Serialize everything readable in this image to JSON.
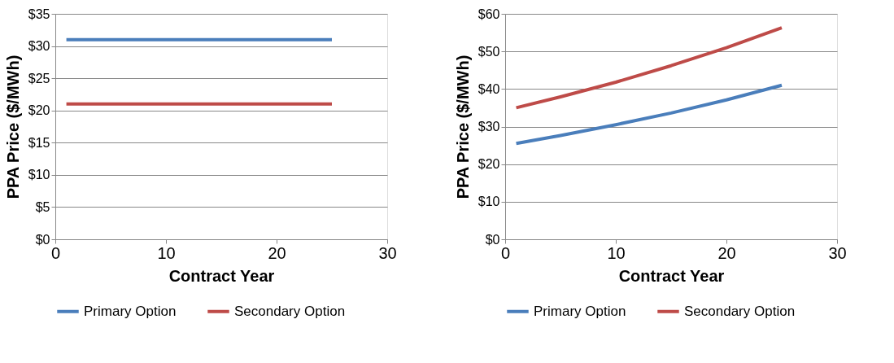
{
  "chart_data": [
    {
      "type": "line",
      "xlabel": "Contract Year",
      "ylabel": "PPA Price ($/MWh)",
      "xlim": [
        0,
        30
      ],
      "xticks": [
        0,
        10,
        20,
        30
      ],
      "ylim": [
        0,
        35
      ],
      "yticks": [
        {
          "value": 0,
          "label": "$0"
        },
        {
          "value": 5,
          "label": "$5"
        },
        {
          "value": 10,
          "label": "$10"
        },
        {
          "value": 15,
          "label": "$15"
        },
        {
          "value": 20,
          "label": "$20"
        },
        {
          "value": 25,
          "label": "$25"
        },
        {
          "value": 30,
          "label": "$30"
        },
        {
          "value": 35,
          "label": "$35"
        }
      ],
      "grid": "y",
      "legend": "bottom",
      "marker": "none",
      "line_style": "solid",
      "series": [
        {
          "name": "Primary Option",
          "color": "#4a7ebb",
          "x": [
            1,
            25
          ],
          "values": [
            31,
            31
          ]
        },
        {
          "name": "Secondary Option",
          "color": "#be4b48",
          "x": [
            1,
            25
          ],
          "values": [
            21,
            21
          ]
        }
      ]
    },
    {
      "type": "line",
      "xlabel": "Contract Year",
      "ylabel": "PPA Price ($/MWh)",
      "xlim": [
        0,
        30
      ],
      "xticks": [
        0,
        10,
        20,
        30
      ],
      "ylim": [
        0,
        60
      ],
      "yticks": [
        {
          "value": 0,
          "label": "$0"
        },
        {
          "value": 10,
          "label": "$10"
        },
        {
          "value": 20,
          "label": "$20"
        },
        {
          "value": 30,
          "label": "$30"
        },
        {
          "value": 40,
          "label": "$40"
        },
        {
          "value": 50,
          "label": "$50"
        },
        {
          "value": 60,
          "label": "$60"
        }
      ],
      "grid": "y",
      "legend": "bottom",
      "marker": "none",
      "line_style": "solid",
      "series": [
        {
          "name": "Primary Option",
          "color": "#4a7ebb",
          "x": [
            1,
            5,
            10,
            15,
            20,
            25
          ],
          "values": [
            25.5,
            27.6,
            30.5,
            33.6,
            37.1,
            41.0
          ]
        },
        {
          "name": "Secondary Option",
          "color": "#be4b48",
          "x": [
            1,
            5,
            10,
            15,
            20,
            25
          ],
          "values": [
            35,
            37.9,
            41.8,
            46.2,
            51.0,
            56.3
          ]
        }
      ]
    }
  ]
}
